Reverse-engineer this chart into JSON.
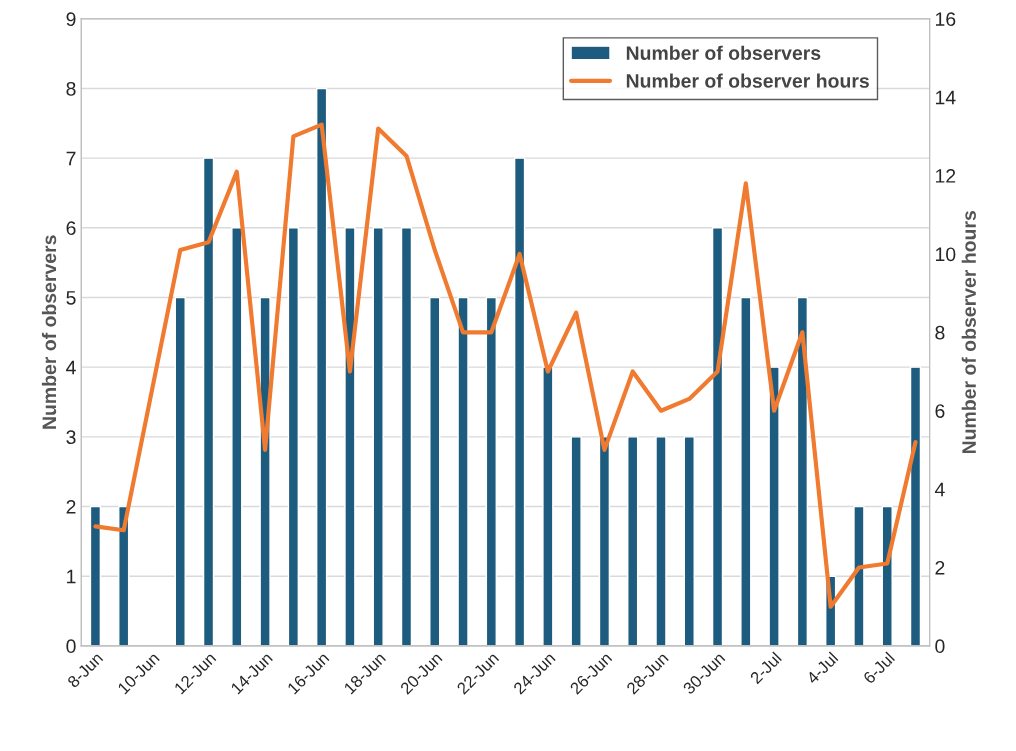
{
  "chart_data": {
    "type": "bar",
    "categories": [
      "8-Jun",
      null,
      "10-Jun",
      null,
      "12-Jun",
      null,
      "14-Jun",
      null,
      "16-Jun",
      null,
      "18-Jun",
      null,
      "20-Jun",
      null,
      "22-Jun",
      null,
      "24-Jun",
      null,
      "26-Jun",
      null,
      "28-Jun",
      null,
      "30-Jun",
      null,
      "2-Jul",
      null,
      "4-Jul",
      null,
      "6-Jul",
      null
    ],
    "series": [
      {
        "name": "Number of observers",
        "color": "#1d5c7e",
        "values": [
          2,
          2,
          null,
          5,
          7,
          6,
          5,
          6,
          8,
          6,
          6,
          6,
          5,
          5,
          5,
          7,
          4,
          3,
          3,
          3,
          3,
          3,
          6,
          5,
          4,
          5,
          1,
          2,
          2,
          4
        ]
      },
      {
        "name": "Number of observer hours",
        "type": "line",
        "axis": "y2",
        "color": "#f07b30",
        "values": [
          3.05,
          2.95,
          null,
          10.1,
          10.3,
          12.1,
          5.0,
          13.0,
          13.3,
          7.0,
          13.2,
          12.5,
          10.1,
          8.0,
          8.0,
          10.0,
          7.0,
          8.5,
          5.0,
          7.0,
          6.0,
          6.3,
          7.0,
          11.8,
          6.0,
          8.0,
          1.0,
          2.0,
          2.1,
          5.2
        ]
      }
    ],
    "ylabel": "Number of observers",
    "y2label": "Number of observer hours",
    "ylim": [
      0,
      9
    ],
    "yticks": [
      0,
      1,
      2,
      3,
      4,
      5,
      6,
      7,
      8,
      9
    ],
    "y2lim": [
      0,
      16
    ],
    "y2ticks": [
      0,
      2,
      4,
      6,
      8,
      10,
      12,
      14,
      16
    ],
    "grid": "y",
    "legend": "top right",
    "marker": "none",
    "line_style": "solid"
  }
}
